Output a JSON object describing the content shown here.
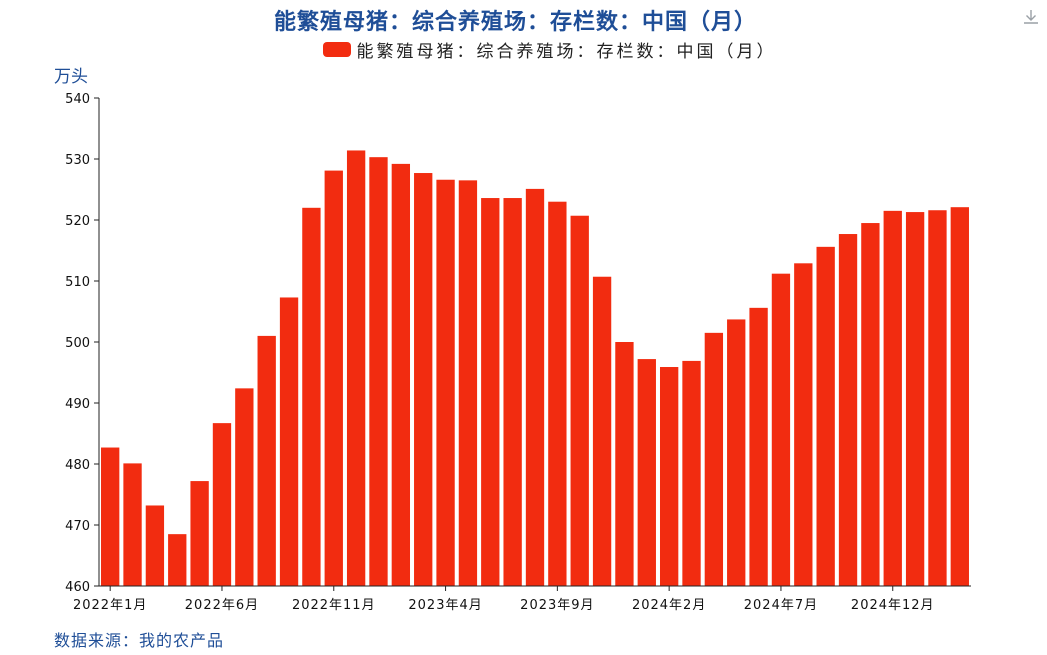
{
  "title": "能繁殖母猪：综合养殖场：存栏数：中国（月）",
  "legend_label": "能繁殖母猪：综合养殖场：存栏数：中国（月）",
  "unit_label": "万头",
  "source": "数据来源：我的农产品",
  "icons": {
    "download": "download-icon"
  },
  "colors": {
    "bar": "#f22c10",
    "title": "#1f4e97",
    "axis": "#222222"
  },
  "chart_data": {
    "type": "bar",
    "title": "能繁殖母猪：综合养殖场：存栏数：中国（月）",
    "ylabel": "万头",
    "xlabel": "",
    "ylim": [
      460,
      540
    ],
    "yticks": [
      460,
      470,
      480,
      490,
      500,
      510,
      520,
      530,
      540
    ],
    "grid": false,
    "legend_position": "top-center",
    "categories": [
      "2022年1月",
      "2022年2月",
      "2022年3月",
      "2022年4月",
      "2022年5月",
      "2022年6月",
      "2022年7月",
      "2022年8月",
      "2022年9月",
      "2022年10月",
      "2022年11月",
      "2022年12月",
      "2023年1月",
      "2023年2月",
      "2023年3月",
      "2023年4月",
      "2023年5月",
      "2023年6月",
      "2023年7月",
      "2023年8月",
      "2023年9月",
      "2023年10月",
      "2023年11月",
      "2023年12月",
      "2024年1月",
      "2024年2月",
      "2024年3月",
      "2024年4月",
      "2024年5月",
      "2024年6月",
      "2024年7月",
      "2024年8月",
      "2024年9月",
      "2024年10月",
      "2024年11月",
      "2024年12月",
      "2025年1月",
      "2025年2月",
      "2025年3月"
    ],
    "x_tick_labels": [
      "2022年1月",
      "2022年6月",
      "2022年11月",
      "2023年4月",
      "2023年9月",
      "2024年2月",
      "2024年7月",
      "2024年12月"
    ],
    "series": [
      {
        "name": "能繁殖母猪：综合养殖场：存栏数：中国（月）",
        "values": [
          482.7,
          480.1,
          473.2,
          468.5,
          477.2,
          486.7,
          492.4,
          501.0,
          507.3,
          522.0,
          528.1,
          531.4,
          530.3,
          529.2,
          527.7,
          526.6,
          526.5,
          523.6,
          523.6,
          525.1,
          523.0,
          520.7,
          510.7,
          500.0,
          497.2,
          495.9,
          496.9,
          501.5,
          503.7,
          505.6,
          511.2,
          512.9,
          515.6,
          517.7,
          519.5,
          521.5,
          521.3,
          521.6,
          522.1
        ]
      }
    ]
  }
}
